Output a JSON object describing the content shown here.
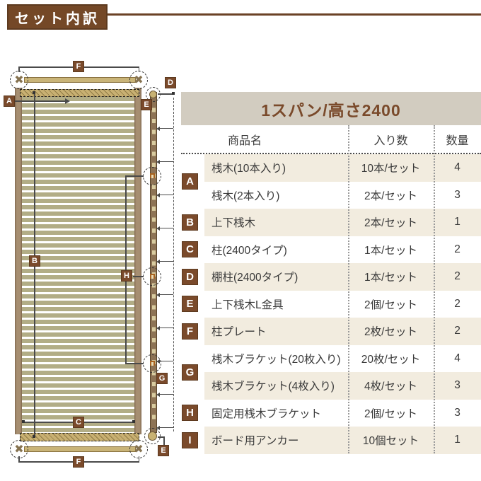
{
  "page_title": "セット内訳",
  "colors": {
    "brand_brown": "#7a4a2b",
    "banner_brown": "#744827",
    "title_bar_bg": "#d2ccc0",
    "row_beige": "#f2ecdf",
    "row_white": "#ffffff",
    "slat_olive": "#b2ad86",
    "wood_tan": "#c9b478",
    "post_brown": "#a68e71"
  },
  "diagram": {
    "badges": {
      "a": "A",
      "b": "B",
      "c": "C",
      "d": "D",
      "e": "E",
      "f": "F",
      "g": "G",
      "h": "H"
    }
  },
  "table": {
    "title": "1スパン/高さ2400",
    "columns": [
      "商品名",
      "入り数",
      "数量"
    ],
    "rows": [
      {
        "letter": "A",
        "letter_span": 2,
        "name": "桟木(10本入り)",
        "pack": "10本/セット",
        "qty": "4"
      },
      {
        "letter": "",
        "name": "桟木(2本入り)",
        "pack": "2本/セット",
        "qty": "3"
      },
      {
        "letter": "B",
        "name": "上下桟木",
        "pack": "2本/セット",
        "qty": "1"
      },
      {
        "letter": "C",
        "name": "柱(2400タイプ)",
        "pack": "1本/セット",
        "qty": "2"
      },
      {
        "letter": "D",
        "name": "棚柱(2400タイプ)",
        "pack": "1本/セット",
        "qty": "2"
      },
      {
        "letter": "E",
        "name": "上下桟木L金具",
        "pack": "2個/セット",
        "qty": "2"
      },
      {
        "letter": "F",
        "name": "柱プレート",
        "pack": "2枚/セット",
        "qty": "2"
      },
      {
        "letter": "G",
        "letter_span": 2,
        "name": "桟木ブラケット(20枚入り)",
        "pack": "20枚/セット",
        "qty": "4"
      },
      {
        "letter": "",
        "name": "桟木ブラケット(4枚入り)",
        "pack": "4枚/セット",
        "qty": "3"
      },
      {
        "letter": "H",
        "name": "固定用桟木ブラケット",
        "pack": "2個/セット",
        "qty": "3"
      },
      {
        "letter": "I",
        "name": "ボード用アンカー",
        "pack": "10個セット",
        "qty": "1"
      }
    ]
  }
}
